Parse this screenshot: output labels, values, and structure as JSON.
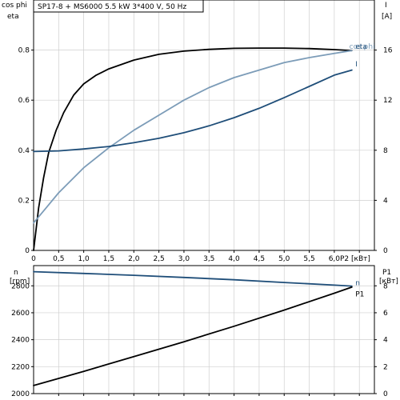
{
  "title": "SP17-8 + MS6000   5.5 kW   3*400 V, 50 Hz",
  "chart_data": [
    {
      "type": "line",
      "x_tick_labels": [
        "0",
        "0,5",
        "1,0",
        "1,5",
        "2,0",
        "2,5",
        "3,0",
        "3,5",
        "4,0",
        "4,5",
        "5,0",
        "5,5",
        "6,0"
      ],
      "xlabel": "P2 [кВт]",
      "xlim": [
        0,
        6.8
      ],
      "left_axis": {
        "label_line1": "cos phi",
        "label_line2": "eta",
        "ylim": [
          0,
          1
        ],
        "tick_labels": [
          "0",
          "0.2",
          "0.4",
          "0.6",
          "0.8"
        ],
        "tick_values": [
          0,
          0.2,
          0.4,
          0.6,
          0.8
        ]
      },
      "right_axis": {
        "label_line1": "I",
        "label_line2": "[A]",
        "ylim": [
          0,
          20
        ],
        "tick_labels": [
          "0",
          "4",
          "8",
          "12",
          "16"
        ],
        "tick_values": [
          0,
          4,
          8,
          12,
          16
        ]
      },
      "grid": true,
      "series": [
        {
          "name": "cos phi",
          "axis": "left",
          "color": "#000000",
          "points": [
            [
              0,
              0
            ],
            [
              0.1,
              0.17
            ],
            [
              0.2,
              0.29
            ],
            [
              0.3,
              0.39
            ],
            [
              0.45,
              0.48
            ],
            [
              0.6,
              0.55
            ],
            [
              0.8,
              0.62
            ],
            [
              1.0,
              0.665
            ],
            [
              1.25,
              0.7
            ],
            [
              1.5,
              0.725
            ],
            [
              2.0,
              0.76
            ],
            [
              2.5,
              0.783
            ],
            [
              3.0,
              0.796
            ],
            [
              3.5,
              0.803
            ],
            [
              4.0,
              0.807
            ],
            [
              4.5,
              0.808
            ],
            [
              5.0,
              0.808
            ],
            [
              5.5,
              0.806
            ],
            [
              6.0,
              0.802
            ],
            [
              6.35,
              0.798
            ]
          ]
        },
        {
          "name": "eta",
          "axis": "left",
          "color": "#7c9cb8",
          "points": [
            [
              0,
              0.11
            ],
            [
              0.25,
              0.17
            ],
            [
              0.5,
              0.23
            ],
            [
              1.0,
              0.33
            ],
            [
              1.5,
              0.41
            ],
            [
              2.0,
              0.48
            ],
            [
              2.5,
              0.54
            ],
            [
              3.0,
              0.6
            ],
            [
              3.5,
              0.65
            ],
            [
              4.0,
              0.69
            ],
            [
              4.5,
              0.72
            ],
            [
              5.0,
              0.75
            ],
            [
              5.5,
              0.77
            ],
            [
              6.0,
              0.787
            ],
            [
              6.35,
              0.798
            ]
          ]
        },
        {
          "name": "I",
          "axis": "right",
          "color": "#1f4e79",
          "points": [
            [
              0,
              7.9
            ],
            [
              0.5,
              7.95
            ],
            [
              1.0,
              8.1
            ],
            [
              1.5,
              8.3
            ],
            [
              2.0,
              8.6
            ],
            [
              2.5,
              8.95
            ],
            [
              3.0,
              9.4
            ],
            [
              3.5,
              9.95
            ],
            [
              4.0,
              10.6
            ],
            [
              4.5,
              11.35
            ],
            [
              5.0,
              12.2
            ],
            [
              5.5,
              13.1
            ],
            [
              6.0,
              14.0
            ],
            [
              6.35,
              14.4
            ]
          ]
        }
      ],
      "labels": [
        {
          "text": "cos phi",
          "x": 6.3,
          "y": 0.805,
          "axis": "left",
          "color": "#7c9cb8"
        },
        {
          "text": "eta",
          "x": 6.42,
          "y": 0.805,
          "axis": "left",
          "color": "#1f4e79"
        },
        {
          "text": "I",
          "x": 6.42,
          "y": 14.7,
          "axis": "right",
          "color": "#1f4e79"
        }
      ]
    },
    {
      "type": "line",
      "xlim": [
        0,
        6.8
      ],
      "grid": true,
      "left_axis": {
        "label_line1": "n",
        "label_line2": "[rpm]",
        "ylim": [
          2000,
          2950
        ],
        "tick_labels": [
          "2000",
          "2200",
          "2400",
          "2600",
          "2800"
        ],
        "tick_values": [
          2000,
          2200,
          2400,
          2600,
          2800
        ]
      },
      "right_axis": {
        "label_line1": "P1",
        "label_line2": "[кВт]",
        "ylim": [
          0,
          9.5
        ],
        "tick_labels": [
          "0",
          "2",
          "4",
          "6",
          "8"
        ],
        "tick_values": [
          0,
          2,
          4,
          6,
          8
        ]
      },
      "series": [
        {
          "name": "n",
          "axis": "left",
          "color": "#1f4e79",
          "points": [
            [
              0,
              2905
            ],
            [
              1.0,
              2892
            ],
            [
              2.0,
              2878
            ],
            [
              3.0,
              2862
            ],
            [
              4.0,
              2845
            ],
            [
              5.0,
              2825
            ],
            [
              6.0,
              2805
            ],
            [
              6.35,
              2798
            ]
          ]
        },
        {
          "name": "P1",
          "axis": "right",
          "color": "#000000",
          "points": [
            [
              0,
              0.6
            ],
            [
              1.0,
              1.65
            ],
            [
              2.0,
              2.75
            ],
            [
              3.0,
              3.85
            ],
            [
              4.0,
              5.0
            ],
            [
              5.0,
              6.2
            ],
            [
              6.0,
              7.45
            ],
            [
              6.35,
              7.9
            ]
          ]
        }
      ],
      "labels": [
        {
          "text": "n",
          "x": 6.42,
          "y": 2805,
          "axis": "left",
          "color": "#1f4e79"
        },
        {
          "text": "P1",
          "x": 6.42,
          "y": 7.2,
          "axis": "right",
          "color": "#000000"
        }
      ]
    }
  ]
}
